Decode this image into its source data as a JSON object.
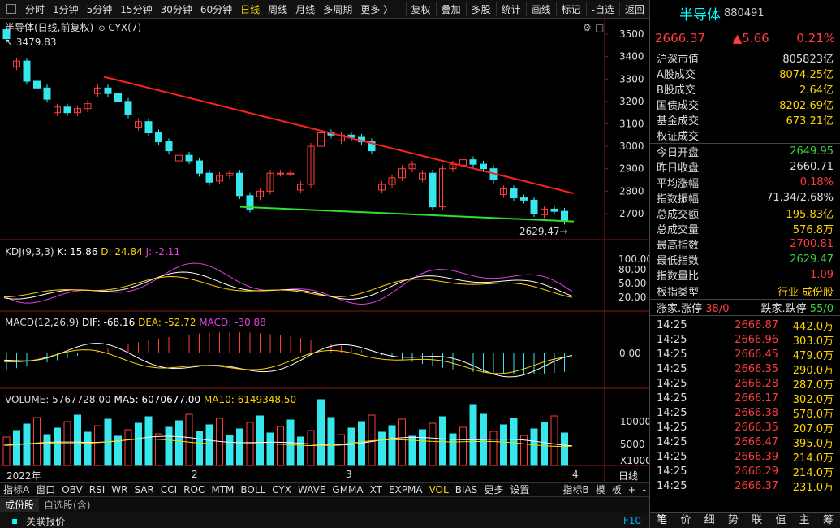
{
  "toolbar": {
    "periods": [
      "分时",
      "1分钟",
      "5分钟",
      "15分钟",
      "30分钟",
      "60分钟",
      "日线",
      "周线",
      "月线",
      "多周期",
      "更多 〉"
    ],
    "active": "日线",
    "actions": [
      "复权",
      "叠加",
      "多股",
      "统计",
      "画线",
      "标记",
      "-自选",
      "返回"
    ]
  },
  "main": {
    "title": "半导体(日线,前复权)",
    "indicator": "CYX(7)",
    "max_label": "3479.83",
    "min_label": "2629.47",
    "y_ticks": [
      "3500",
      "3400",
      "3300",
      "3200",
      "3100",
      "3000",
      "2900",
      "2800",
      "2700"
    ]
  },
  "kdj": {
    "name": "KDJ(9,3,3)",
    "k": "K: 15.86",
    "d": "D: 24.84",
    "j": "J: -2.11",
    "ticks": [
      "100.00",
      "80.00",
      "50.00",
      "20.00"
    ]
  },
  "macd": {
    "name": "MACD(12,26,9)",
    "dif": "DIF: -68.16",
    "dea": "DEA: -52.72",
    "macd": "MACD: -30.88",
    "ticks": [
      "0.00"
    ]
  },
  "volume": {
    "name": "VOLUME: 5767728.00",
    "ma5": "MA5: 6070677.00",
    "ma10": "MA10: 6149348.50",
    "ticks": [
      "10000",
      "5000",
      "X1000"
    ]
  },
  "xaxis": {
    "labels": [
      "2022年",
      "2",
      "3",
      "4"
    ],
    "mode": "日线"
  },
  "indicator_tabs": {
    "items": [
      "指标A",
      "窗口",
      "OBV",
      "RSI",
      "WR",
      "SAR",
      "CCI",
      "ROC",
      "MTM",
      "BOLL",
      "CYX",
      "WAVE",
      "GMMA",
      "XT",
      "EXPMA",
      "VOL",
      "BIAS",
      "更多",
      "设置"
    ],
    "active": "VOL",
    "right": [
      "指标B",
      "模",
      "板",
      "+",
      "-"
    ]
  },
  "sheet_tabs": [
    "成份股",
    "自选股(含)"
  ],
  "status": {
    "label": "关联报价",
    "key": "F10"
  },
  "quote": {
    "name": "半导体",
    "code": "880491",
    "price": "2666.37",
    "change": "▲5.66",
    "pct": "0.21%"
  },
  "stats1": [
    [
      "沪深市值",
      "805823亿",
      "w"
    ],
    [
      "A股成交",
      "8074.25亿",
      "y"
    ],
    [
      "B股成交",
      "2.64亿",
      "y"
    ],
    [
      "国债成交",
      "8202.69亿",
      "y"
    ],
    [
      "基金成交",
      "673.21亿",
      "y"
    ],
    [
      "权证成交",
      "",
      ""
    ]
  ],
  "stats2": [
    [
      "今日开盘",
      "2649.95",
      "g"
    ],
    [
      "昨日收盘",
      "2660.71",
      "w"
    ],
    [
      "平均涨幅",
      "0.18%",
      "r"
    ],
    [
      "指数振幅",
      "71.34/2.68%",
      "w"
    ],
    [
      "总成交额",
      "195.83亿",
      "y"
    ],
    [
      "总成交量",
      "576.8万",
      "y"
    ],
    [
      "最高指数",
      "2700.81",
      "r"
    ],
    [
      "最低指数",
      "2629.47",
      "g"
    ],
    [
      "指数量比",
      "1.09",
      "r"
    ]
  ],
  "board": {
    "label": "板指类型",
    "v1": "行业",
    "v2": "成份股"
  },
  "limit": {
    "up_label": "涨家.涨停",
    "up_val": "38/0",
    "down_label": "跌家.跌停",
    "down_val": "55/0"
  },
  "trades": [
    [
      "14:25",
      "2666.87",
      "442.0万"
    ],
    [
      "14:25",
      "2666.96",
      "303.0万"
    ],
    [
      "14:25",
      "2666.45",
      "479.0万"
    ],
    [
      "14:25",
      "2666.35",
      "290.0万"
    ],
    [
      "14:25",
      "2666.28",
      "287.0万"
    ],
    [
      "14:25",
      "2666.17",
      "302.0万"
    ],
    [
      "14:25",
      "2666.38",
      "578.0万"
    ],
    [
      "14:25",
      "2666.35",
      "207.0万"
    ],
    [
      "14:25",
      "2666.47",
      "395.0万"
    ],
    [
      "14:25",
      "2666.39",
      "214.0万"
    ],
    [
      "14:25",
      "2666.29",
      "214.0万"
    ],
    [
      "14:25",
      "2666.37",
      "231.0万"
    ]
  ],
  "right_tabs": [
    "笔",
    "价",
    "细",
    "势",
    "联",
    "值",
    "主",
    "筹"
  ],
  "colors": {
    "up": "#ff3c3c",
    "down": "#36e8ee",
    "bg": "#000000",
    "yellow": "#ffd500",
    "trend_red": "#ff2020",
    "trend_green": "#2fe02f"
  },
  "chart_data": {
    "type": "candlestick",
    "closes": [
      3479.83,
      3380,
      3290,
      3260,
      3210,
      3175,
      3150,
      3168,
      3190,
      3260,
      3235,
      3200,
      3140,
      3110,
      3060,
      3020,
      2980,
      2960,
      2935,
      2880,
      2840,
      2870,
      2880,
      2780,
      2720,
      2800,
      2880,
      2880,
      2880,
      2830,
      3000,
      3060,
      3050,
      3050,
      3040,
      3020,
      2980,
      2830,
      2860,
      2900,
      2920,
      2880,
      2730,
      2900,
      2920,
      2940,
      2920,
      2900,
      2850,
      2810,
      2770,
      2760,
      2700,
      2720,
      2710,
      2666.37
    ],
    "trend_high": [
      3310,
      2790
    ],
    "trend_low": [
      2730,
      2665
    ]
  }
}
